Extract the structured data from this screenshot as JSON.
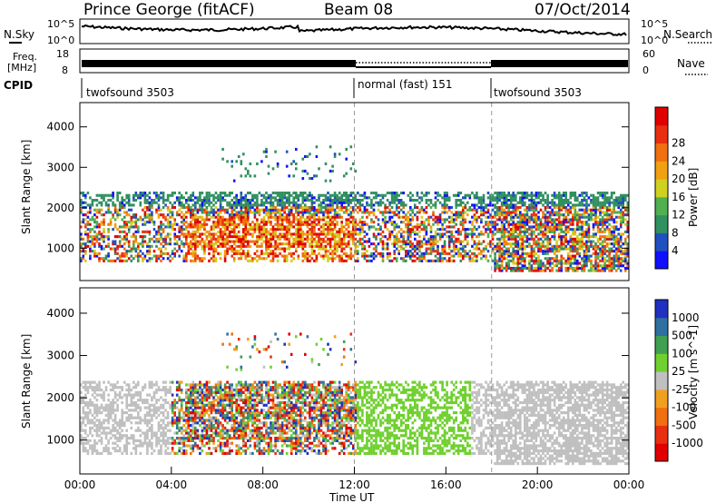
{
  "header": {
    "station": "Prince George (fitACF)",
    "beam": "Beam 08",
    "date": "07/Oct/2014"
  },
  "top_panel": {
    "left_label": "N.Sky",
    "left_tick_top": "10^5",
    "left_tick_bottom": "10^0",
    "right_label": "N.Search",
    "right_tick_top": "10^5",
    "right_tick_bottom": "10^0"
  },
  "freq_panel": {
    "left_label_1": "Freq.",
    "left_label_2": "[MHz]",
    "left_tick_top": "18",
    "left_tick_bottom": "8",
    "right_label": "Nave",
    "right_tick_top": "60",
    "right_tick_bottom": "0"
  },
  "cpid": {
    "label": "CPID",
    "segments": [
      "twofsound 3503",
      "normal (fast) 151",
      "twofsound 3503"
    ]
  },
  "chart_data": [
    {
      "type": "heatmap",
      "name": "power",
      "ylabel": "Slant Range [km]",
      "xlabel": "",
      "ylim": [
        200,
        4600
      ],
      "xlim_hours": [
        0,
        24
      ],
      "yticks": [
        "1000",
        "2000",
        "3000",
        "4000"
      ],
      "colorbar_label": "Power [dB]",
      "colorbar_ticks": [
        "4",
        "8",
        "12",
        "16",
        "20",
        "24",
        "28"
      ],
      "colorbar_colors": [
        "#1010ff",
        "#2050c0",
        "#309060",
        "#50b050",
        "#d0d020",
        "#f0a010",
        "#f07010",
        "#e83010",
        "#e00000"
      ],
      "mode_changes_hours": [
        12,
        18
      ]
    },
    {
      "type": "heatmap",
      "name": "velocity",
      "ylabel": "Slant Range [km]",
      "xlabel": "Time UT",
      "ylim": [
        200,
        4600
      ],
      "xlim_hours": [
        0,
        24
      ],
      "yticks": [
        "1000",
        "2000",
        "3000",
        "4000"
      ],
      "xticks": [
        "00:00",
        "04:00",
        "08:00",
        "12:00",
        "16:00",
        "20:00",
        "00:00"
      ],
      "colorbar_label": "Velocity [m s^-1]",
      "colorbar_ticks": [
        "1000",
        "500",
        "100",
        "25",
        "-25",
        "-100",
        "-500",
        "-1000"
      ],
      "colorbar_colors": [
        "#2030c0",
        "#3070a0",
        "#40a050",
        "#70d030",
        "#c0c0c0",
        "#f0a020",
        "#f07010",
        "#e83010",
        "#e00000"
      ],
      "mode_changes_hours": [
        12,
        18
      ]
    }
  ]
}
